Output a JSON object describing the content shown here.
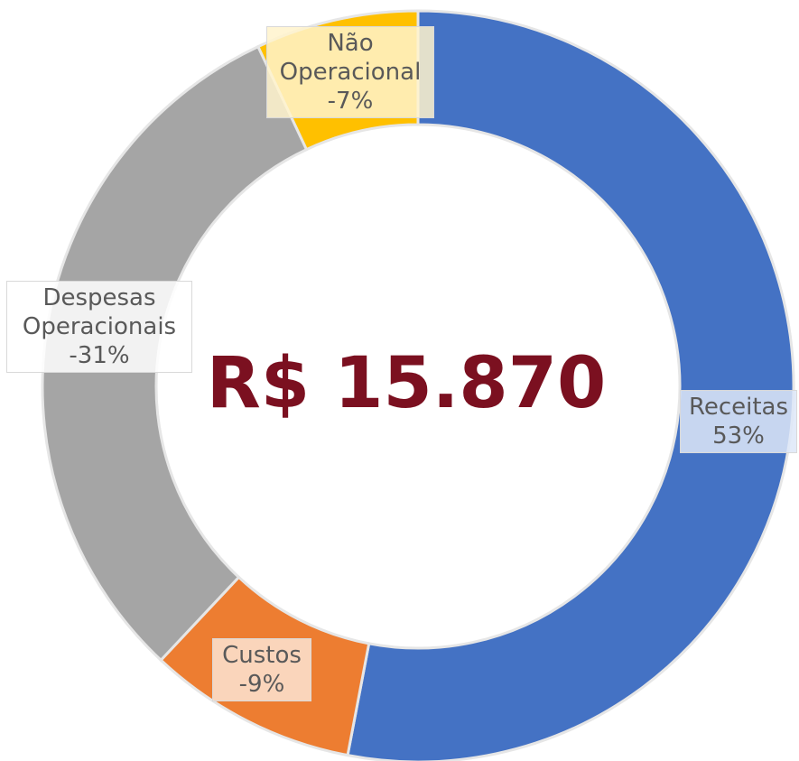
{
  "chart_data": {
    "type": "donut",
    "center_label": "R$ 15.870",
    "categories": [
      "Receitas",
      "Custos",
      "Despesas Operacionais",
      "Não Operacional"
    ],
    "values": [
      53,
      -9,
      -31,
      -7
    ],
    "value_labels": [
      "53%",
      "-9%",
      "-31%",
      "-7%"
    ],
    "colors": [
      "#4472c4",
      "#ed7d31",
      "#a5a5a5",
      "#ffc000"
    ]
  }
}
